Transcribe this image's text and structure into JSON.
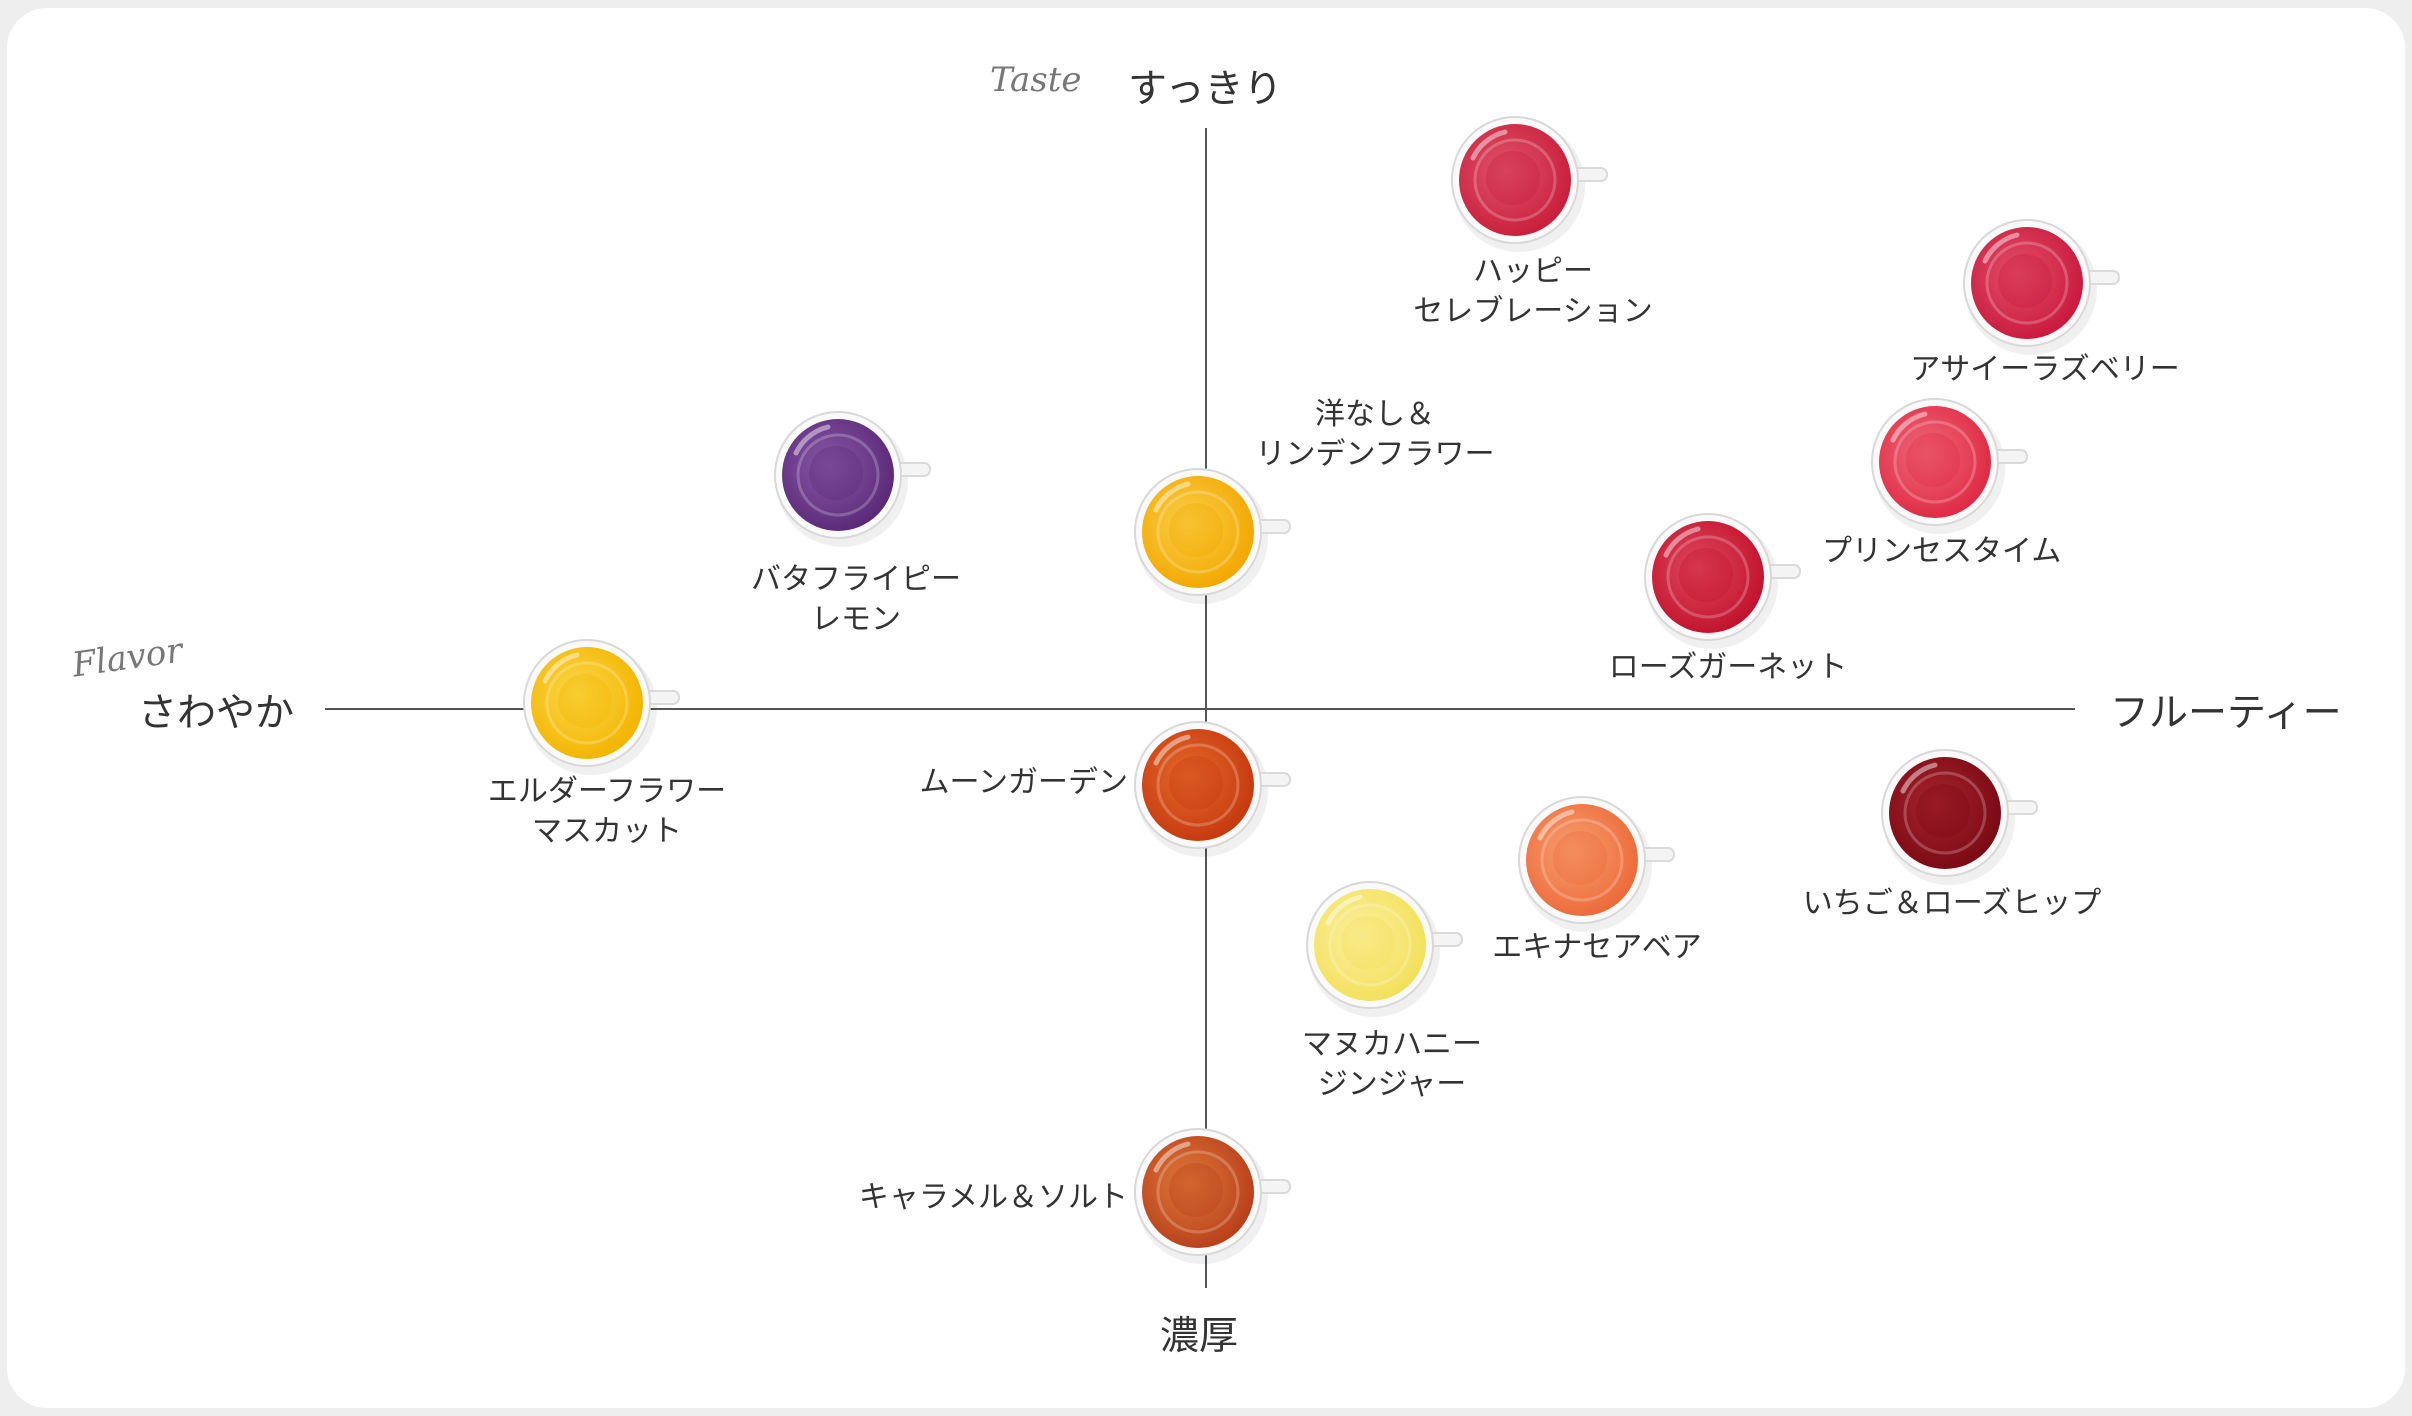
{
  "axes": {
    "top_script": "Taste",
    "top": "すっきり",
    "bottom": "濃厚",
    "left_script": "Flavor",
    "left": "さわやか",
    "right": "フルーティー"
  },
  "teas": [
    {
      "id": "happy",
      "lines": [
        "ハッピー",
        "セレブレーション"
      ],
      "color": "#c81e3c",
      "color2": "#e0566a"
    },
    {
      "id": "acai",
      "lines": [
        "アサイーラズベリー"
      ],
      "color": "#c91a3e",
      "color2": "#e25068"
    },
    {
      "id": "prince",
      "lines": [
        "プリンセスタイム"
      ],
      "color": "#df2a45",
      "color2": "#ee6a7a"
    },
    {
      "id": "rose",
      "lines": [
        "ローズガーネット"
      ],
      "color": "#c2122e",
      "color2": "#de4a5e"
    },
    {
      "id": "yonashi",
      "lines": [
        "洋なし＆",
        "リンデンフラワー"
      ],
      "color": "#f2a800",
      "color2": "#fbcf4c"
    },
    {
      "id": "butterfly",
      "lines": [
        "バタフライピー",
        "レモン"
      ],
      "color": "#5a2a78",
      "color2": "#8a5aa8"
    },
    {
      "id": "elder",
      "lines": [
        "エルダーフラワー",
        "マスカット"
      ],
      "color": "#f2b400",
      "color2": "#fcd94c"
    },
    {
      "id": "moon",
      "lines": [
        "ムーンガーデン"
      ],
      "color": "#c53a10",
      "color2": "#e66a2a"
    },
    {
      "id": "ichigo",
      "lines": [
        "いちご＆ローズヒップ"
      ],
      "color": "#7a0a14",
      "color2": "#a8232e"
    },
    {
      "id": "echinacea",
      "lines": [
        "エキナセアベア"
      ],
      "color": "#ec6a3a",
      "color2": "#f8a070"
    },
    {
      "id": "manuka",
      "lines": [
        "マヌカハニー",
        "ジンジャー"
      ],
      "color": "#f3e05a",
      "color2": "#fbf0a0"
    },
    {
      "id": "caramel",
      "lines": [
        "キャラメル＆ソルト"
      ],
      "color": "#b8401a",
      "color2": "#e07a3c"
    }
  ]
}
